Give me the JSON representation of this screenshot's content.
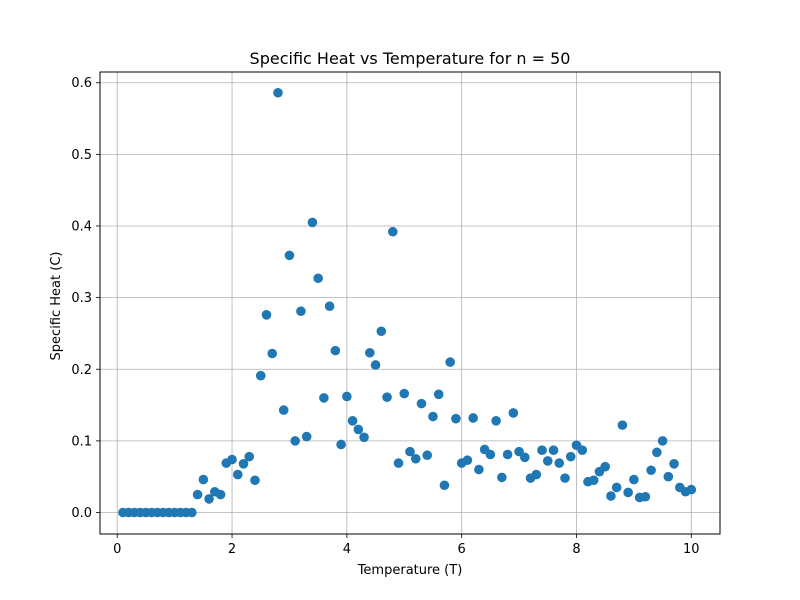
{
  "chart_data": {
    "type": "scatter",
    "title": "Specific Heat vs Temperature for n = 50",
    "xlabel": "Temperature (T)",
    "ylabel": "Specific Heat (C)",
    "xlim": [
      -0.3,
      10.5
    ],
    "ylim": [
      -0.03,
      0.615
    ],
    "xticks": [
      0,
      2,
      4,
      6,
      8,
      10
    ],
    "xtick_labels": [
      "0",
      "2",
      "4",
      "6",
      "8",
      "10"
    ],
    "yticks": [
      0.0,
      0.1,
      0.2,
      0.3,
      0.4,
      0.5,
      0.6
    ],
    "ytick_labels": [
      "0.0",
      "0.1",
      "0.2",
      "0.3",
      "0.4",
      "0.5",
      "0.6"
    ],
    "grid": true,
    "marker_color": "#1f77b4",
    "series": [
      {
        "x": [
          0.1,
          0.2,
          0.3,
          0.4,
          0.5,
          0.6,
          0.7,
          0.8,
          0.9,
          1.0,
          1.1,
          1.2,
          1.3,
          1.4,
          1.5,
          1.6,
          1.7,
          1.8,
          1.9,
          2.0,
          2.1,
          2.2,
          2.3,
          2.4,
          2.5,
          2.6,
          2.7,
          2.8,
          2.9,
          3.0,
          3.1,
          3.2,
          3.3,
          3.4,
          3.5,
          3.6,
          3.7,
          3.8,
          3.9,
          4.0,
          4.1,
          4.2,
          4.3,
          4.4,
          4.5,
          4.6,
          4.7,
          4.8,
          4.9,
          5.0,
          5.1,
          5.2,
          5.3,
          5.4,
          5.5,
          5.6,
          5.7,
          5.8,
          5.9,
          6.0,
          6.1,
          6.2,
          6.3,
          6.4,
          6.5,
          6.6,
          6.7,
          6.8,
          6.9,
          7.0,
          7.1,
          7.2,
          7.3,
          7.4,
          7.5,
          7.6,
          7.7,
          7.8,
          7.9,
          8.0,
          8.1,
          8.2,
          8.3,
          8.4,
          8.5,
          8.6,
          8.7,
          8.8,
          8.9,
          9.0,
          9.1,
          9.2,
          9.3,
          9.4,
          9.5,
          9.6,
          9.7,
          9.8,
          9.9,
          10.0
        ],
        "y": [
          0.0,
          0.0,
          0.0,
          0.0,
          0.0,
          0.0,
          0.0,
          0.0,
          0.0,
          0.0,
          0.0,
          0.0,
          0.0,
          0.025,
          0.046,
          0.019,
          0.029,
          0.025,
          0.069,
          0.074,
          0.053,
          0.068,
          0.078,
          0.045,
          0.191,
          0.276,
          0.222,
          0.586,
          0.143,
          0.359,
          0.1,
          0.281,
          0.106,
          0.405,
          0.327,
          0.16,
          0.288,
          0.226,
          0.095,
          0.162,
          0.128,
          0.116,
          0.105,
          0.223,
          0.206,
          0.253,
          0.161,
          0.392,
          0.069,
          0.166,
          0.085,
          0.075,
          0.152,
          0.08,
          0.134,
          0.165,
          0.038,
          0.21,
          0.131,
          0.069,
          0.073,
          0.132,
          0.06,
          0.088,
          0.081,
          0.128,
          0.049,
          0.081,
          0.139,
          0.085,
          0.077,
          0.048,
          0.053,
          0.087,
          0.072,
          0.087,
          0.069,
          0.048,
          0.078,
          0.094,
          0.087,
          0.043,
          0.045,
          0.057,
          0.064,
          0.023,
          0.035,
          0.122,
          0.028,
          0.046,
          0.021,
          0.022,
          0.059,
          0.084,
          0.1,
          0.05,
          0.068,
          0.035,
          0.029,
          0.032
        ]
      }
    ]
  }
}
